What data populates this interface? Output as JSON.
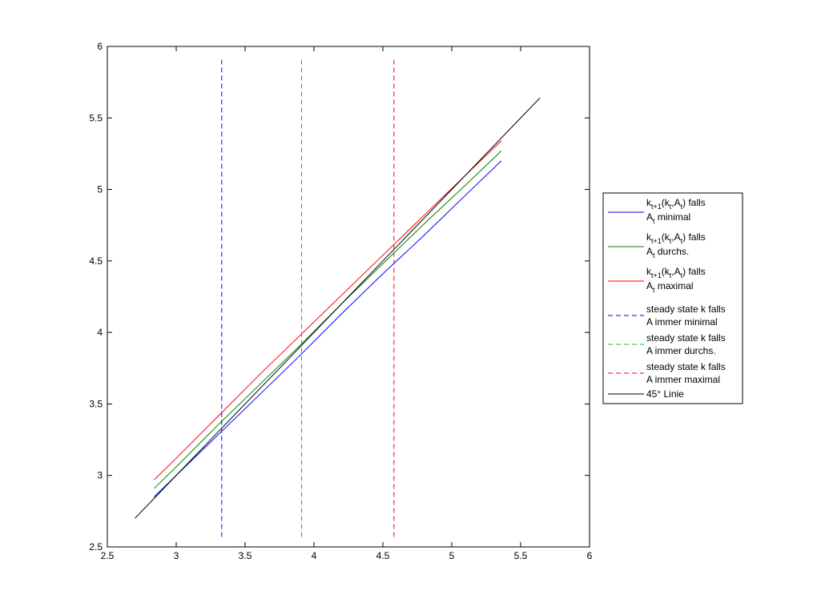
{
  "chart_data": {
    "type": "line",
    "title": "",
    "xlabel": "",
    "ylabel": "",
    "xlim": [
      2.5,
      6
    ],
    "ylim": [
      2.5,
      6
    ],
    "xticks": [
      2.5,
      3,
      3.5,
      4,
      4.5,
      5,
      5.5,
      6
    ],
    "yticks": [
      2.5,
      3,
      3.5,
      4,
      4.5,
      5,
      5.5,
      6
    ],
    "xtick_labels": [
      "2.5",
      "3",
      "3.5",
      "4",
      "4.5",
      "5",
      "5.5",
      "6"
    ],
    "ytick_labels": [
      "2.5",
      "3",
      "3.5",
      "4",
      "4.5",
      "5",
      "5.5",
      "6"
    ],
    "grid": false,
    "legend_placement": "outside-right",
    "series": [
      {
        "legend": {
          "base": "k",
          "sub": "t+1",
          "mid1": "(k",
          "sub2": "t",
          "mid2": ",A",
          "sub3": "t",
          "tail": ") falls",
          "line2_base": "A",
          "line2_sub": "t",
          "line2_tail": " minimal"
        },
        "color": "#0000ff",
        "style": "solid",
        "x": [
          2.84,
          3.0,
          3.3,
          3.6,
          3.9,
          4.2,
          4.5,
          4.8,
          5.1,
          5.36
        ],
        "y": [
          2.85,
          3.0,
          3.28,
          3.56,
          3.84,
          4.13,
          4.41,
          4.68,
          4.96,
          5.2
        ]
      },
      {
        "legend": {
          "base": "k",
          "sub": "t+1",
          "mid1": "(k",
          "sub2": "t",
          "mid2": ",A",
          "sub3": "t",
          "tail": ") falls",
          "line2_base": "A",
          "line2_sub": "t",
          "line2_tail": " durchs."
        },
        "color": "#008000",
        "style": "solid",
        "x": [
          2.84,
          3.0,
          3.3,
          3.6,
          3.9,
          4.2,
          4.5,
          4.8,
          5.1,
          5.36
        ],
        "y": [
          2.91,
          3.06,
          3.35,
          3.63,
          3.91,
          4.2,
          4.48,
          4.76,
          5.03,
          5.27
        ]
      },
      {
        "legend": {
          "base": "k",
          "sub": "t+1",
          "mid1": "(k",
          "sub2": "t",
          "mid2": ",A",
          "sub3": "t",
          "tail": ") falls",
          "line2_base": "A",
          "line2_sub": "t",
          "line2_tail": " maximal"
        },
        "color": "#ff0000",
        "style": "solid",
        "x": [
          2.84,
          3.0,
          3.3,
          3.6,
          3.9,
          4.2,
          4.5,
          4.8,
          5.1,
          5.36
        ],
        "y": [
          2.97,
          3.12,
          3.41,
          3.7,
          3.98,
          4.26,
          4.54,
          4.82,
          5.1,
          5.34
        ]
      },
      {
        "legend": {
          "line1": "steady state k falls",
          "line2": "A immer minimal"
        },
        "color": "#0000ff",
        "style": "dashed",
        "x": [
          3.33,
          3.33
        ],
        "y": [
          2.57,
          5.91
        ]
      },
      {
        "legend": {
          "line1": "steady state k falls",
          "line2": "A immer durchs."
        },
        "color": "#00cc00",
        "style": "dashed",
        "x": [
          3.91,
          3.91
        ],
        "y": [
          2.57,
          5.91
        ]
      },
      {
        "legend": {
          "line1": "steady state k falls",
          "line2": "A immer maximal"
        },
        "color": "#ff0000",
        "style": "dashed",
        "x": [
          4.58,
          4.58
        ],
        "y": [
          2.57,
          5.91
        ]
      },
      {
        "legend": {
          "line1": "45° Linie"
        },
        "color": "#000000",
        "style": "solid",
        "x": [
          2.7,
          5.64
        ],
        "y": [
          2.7,
          5.64
        ]
      }
    ]
  }
}
